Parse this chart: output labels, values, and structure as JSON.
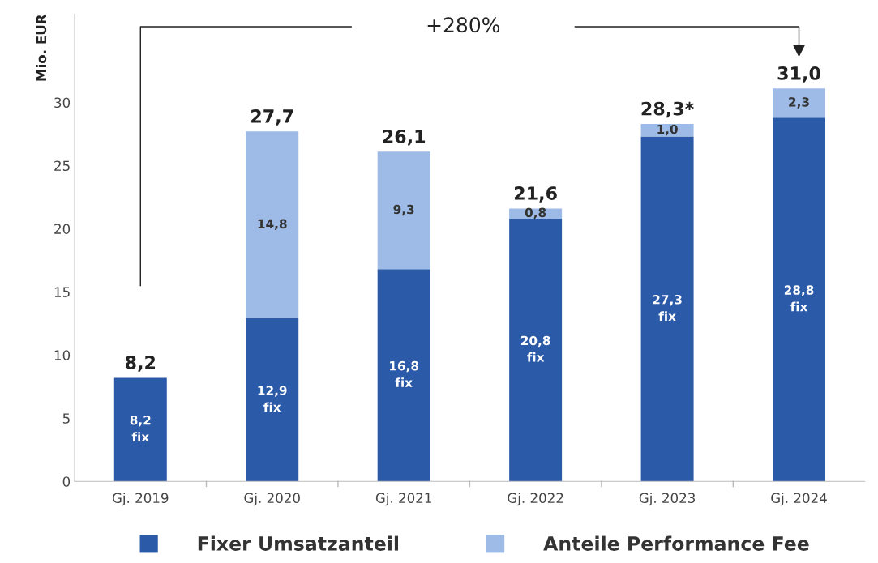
{
  "chart_data": {
    "type": "bar",
    "stacked": true,
    "ylabel": "Mio. EUR",
    "categories": [
      "Gj. 2019",
      "Gj. 2020",
      "Gj. 2021",
      "Gj. 2022",
      "Gj. 2023",
      "Gj. 2024"
    ],
    "series": [
      {
        "name": "Fixer Umsatzanteil",
        "color": "#2a5aa8",
        "values": [
          8.2,
          12.9,
          16.8,
          20.8,
          27.3,
          28.8
        ],
        "value_labels": [
          "8,2\nfix",
          "12,9\nfix",
          "16,8\nfix",
          "20,8\nfix",
          "27,3\nfix",
          "28,8\nfix"
        ]
      },
      {
        "name": "Anteile Performance Fee",
        "color": "#9dbbe6",
        "values": [
          null,
          14.8,
          9.3,
          0.8,
          1.0,
          2.3
        ],
        "value_labels": [
          null,
          "14,8",
          "9,3",
          "0,8",
          "1,0",
          "2,3"
        ]
      }
    ],
    "totals": [
      "8,2",
      "27,7",
      "26,1",
      "21,6",
      "28,3*",
      "31,0"
    ],
    "annotations": [
      "+280%"
    ],
    "ylim": [
      0,
      37
    ],
    "yticks": [
      0,
      5,
      10,
      15,
      20,
      25,
      30
    ],
    "grid": false,
    "legend": "bottom"
  }
}
